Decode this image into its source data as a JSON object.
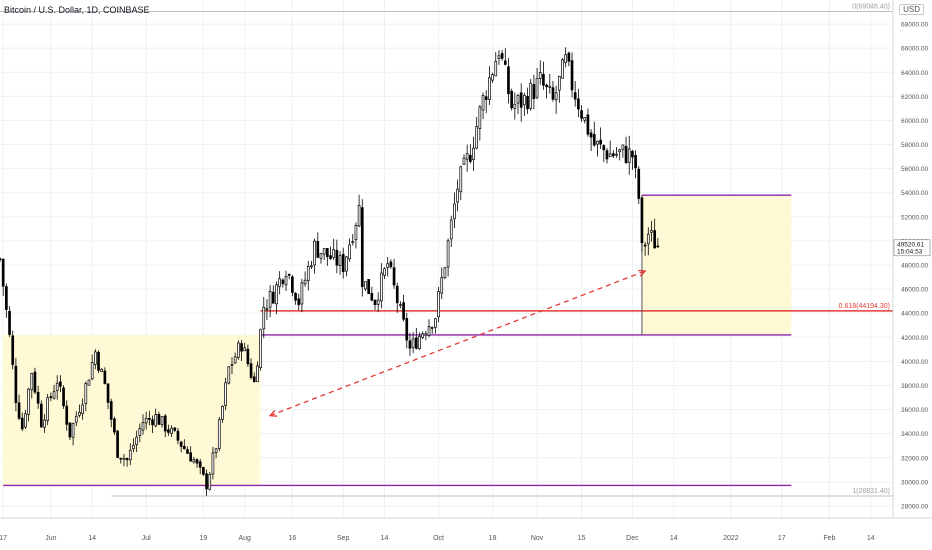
{
  "header": {
    "title": "Bitcoin / U.S. Dollar, 1D, COINBASE",
    "currency": "USD"
  },
  "price_tag": {
    "price": "49520.61",
    "countdown": "15:04:53"
  },
  "fib_labels": {
    "top": "0(69046.40)",
    "mid": "0.618(44194.30)",
    "bottom": "1(28831.40)"
  },
  "colors": {
    "up": "#ffffff",
    "down": "#000000",
    "zone_fill": "#fff9d6",
    "fib_line": "#e53935",
    "level_line": "#8e24aa",
    "arrow": "#e53935",
    "grid": "#eef0f3"
  },
  "chart_data": {
    "type": "candlestick",
    "title": "Bitcoin / U.S. Dollar, 1D, COINBASE",
    "y_axis": {
      "side": "right",
      "ylim": [
        27000,
        70000
      ],
      "ticks": [
        "28000.00",
        "30000.00",
        "32000.00",
        "34000.00",
        "36000.00",
        "38000.00",
        "40000.00",
        "42000.00",
        "44000.00",
        "46000.00",
        "48000.00",
        "50000.00",
        "52000.00",
        "54000.00",
        "56000.00",
        "58000.00",
        "60000.00",
        "62000.00",
        "64000.00",
        "66000.00",
        "68000.00"
      ]
    },
    "x_axis": {
      "xlim": [
        "2021-05-16",
        "2022-02-21"
      ],
      "ticks": [
        {
          "date": "2021-05-17",
          "label": "17"
        },
        {
          "date": "2021-06-01",
          "label": "Jun"
        },
        {
          "date": "2021-06-14",
          "label": "14"
        },
        {
          "date": "2021-07-01",
          "label": "Jul"
        },
        {
          "date": "2021-07-19",
          "label": "19"
        },
        {
          "date": "2021-08-01",
          "label": "Aug"
        },
        {
          "date": "2021-08-16",
          "label": "16"
        },
        {
          "date": "2021-09-01",
          "label": "Sep"
        },
        {
          "date": "2021-09-14",
          "label": "14"
        },
        {
          "date": "2021-10-01",
          "label": "Oct"
        },
        {
          "date": "2021-10-18",
          "label": "18"
        },
        {
          "date": "2021-11-01",
          "label": "Nov"
        },
        {
          "date": "2021-11-15",
          "label": "15"
        },
        {
          "date": "2021-12-01",
          "label": "Dec"
        },
        {
          "date": "2021-12-14",
          "label": "14"
        },
        {
          "date": "2022-01-01",
          "label": "2022"
        },
        {
          "date": "2022-01-17",
          "label": "17"
        },
        {
          "date": "2022-02-01",
          "label": "Feb"
        },
        {
          "date": "2022-02-14",
          "label": "14"
        }
      ]
    },
    "grid": true,
    "last_price": 49520.61,
    "series_anchors": [
      {
        "date": "2021-05-16",
        "close": 48500
      },
      {
        "date": "2021-05-19",
        "close": 42000
      },
      {
        "date": "2021-05-21",
        "close": 37000
      },
      {
        "date": "2021-05-23",
        "close": 34500
      },
      {
        "date": "2021-05-26",
        "close": 39200
      },
      {
        "date": "2021-05-29",
        "close": 35000
      },
      {
        "date": "2021-06-03",
        "close": 38500
      },
      {
        "date": "2021-06-07",
        "close": 34000
      },
      {
        "date": "2021-06-11",
        "close": 37000
      },
      {
        "date": "2021-06-15",
        "close": 40800
      },
      {
        "date": "2021-06-18",
        "close": 38000
      },
      {
        "date": "2021-06-22",
        "close": 32500
      },
      {
        "date": "2021-06-25",
        "close": 31800
      },
      {
        "date": "2021-06-30",
        "close": 35000
      },
      {
        "date": "2021-07-04",
        "close": 35400
      },
      {
        "date": "2021-07-10",
        "close": 33800
      },
      {
        "date": "2021-07-16",
        "close": 31800
      },
      {
        "date": "2021-07-20",
        "close": 29800
      },
      {
        "date": "2021-07-23",
        "close": 33000
      },
      {
        "date": "2021-07-27",
        "close": 39400
      },
      {
        "date": "2021-07-31",
        "close": 41500
      },
      {
        "date": "2021-08-04",
        "close": 38200
      },
      {
        "date": "2021-08-07",
        "close": 44600
      },
      {
        "date": "2021-08-10",
        "close": 45600
      },
      {
        "date": "2021-08-14",
        "close": 47800
      },
      {
        "date": "2021-08-18",
        "close": 45000
      },
      {
        "date": "2021-08-23",
        "close": 49500
      },
      {
        "date": "2021-08-27",
        "close": 48800
      },
      {
        "date": "2021-09-01",
        "close": 48000
      },
      {
        "date": "2021-09-06",
        "close": 52700
      },
      {
        "date": "2021-09-07",
        "close": 46800
      },
      {
        "date": "2021-09-11",
        "close": 45100
      },
      {
        "date": "2021-09-15",
        "close": 48100
      },
      {
        "date": "2021-09-20",
        "close": 43000
      },
      {
        "date": "2021-09-22",
        "close": 41000
      },
      {
        "date": "2021-09-26",
        "close": 42500
      },
      {
        "date": "2021-09-30",
        "close": 43800
      },
      {
        "date": "2021-10-03",
        "close": 48200
      },
      {
        "date": "2021-10-07",
        "close": 54500
      },
      {
        "date": "2021-10-11",
        "close": 57400
      },
      {
        "date": "2021-10-15",
        "close": 61700
      },
      {
        "date": "2021-10-20",
        "close": 66000
      },
      {
        "date": "2021-10-24",
        "close": 61200
      },
      {
        "date": "2021-10-28",
        "close": 61700
      },
      {
        "date": "2021-11-02",
        "close": 63200
      },
      {
        "date": "2021-11-06",
        "close": 61500
      },
      {
        "date": "2021-11-10",
        "close": 64800
      },
      {
        "date": "2021-11-12",
        "close": 63000
      },
      {
        "date": "2021-11-16",
        "close": 60000
      },
      {
        "date": "2021-11-19",
        "close": 58000
      },
      {
        "date": "2021-11-24",
        "close": 57200
      },
      {
        "date": "2021-11-28",
        "close": 57300
      },
      {
        "date": "2021-12-01",
        "close": 57100
      },
      {
        "date": "2021-12-03",
        "close": 53600
      },
      {
        "date": "2021-12-04",
        "close": 49200
      },
      {
        "date": "2021-12-06",
        "close": 50600
      },
      {
        "date": "2021-12-09",
        "close": 49520.61
      }
    ],
    "horizontal_levels": [
      {
        "label": "0(69046.40)",
        "value": 69046.4,
        "start": "2021-05-16",
        "end": "2022-02-21",
        "color": "#bfbfbf"
      },
      {
        "label": "0.618(44194.30)",
        "value": 44194.3,
        "start": "2021-08-06",
        "end": "2022-02-21",
        "color": "#e53935"
      },
      {
        "label": "",
        "value": 42200,
        "start": "2021-08-06",
        "end": "2022-01-20",
        "color": "#8e24aa"
      },
      {
        "label": "",
        "value": 29700,
        "start": "2021-05-17",
        "end": "2022-01-20",
        "color": "#8e24aa"
      },
      {
        "label": "",
        "value": 53800,
        "start": "2021-12-04",
        "end": "2022-01-20",
        "color": "#8e24aa"
      },
      {
        "label": "1(28831.40)",
        "value": 28831.4,
        "start": "2021-06-20",
        "end": "2022-02-21",
        "color": "#bfbfbf"
      }
    ],
    "zones": [
      {
        "x0": "2021-05-17",
        "x1": "2021-08-06",
        "y0": 29700,
        "y1": 42200
      },
      {
        "x0": "2021-12-04",
        "x1": "2022-01-20",
        "y0": 42200,
        "y1": 53800
      }
    ],
    "arrow": {
      "from": {
        "date": "2021-08-09",
        "value": 35500
      },
      "to": {
        "date": "2021-12-05",
        "value": 47500
      }
    }
  }
}
